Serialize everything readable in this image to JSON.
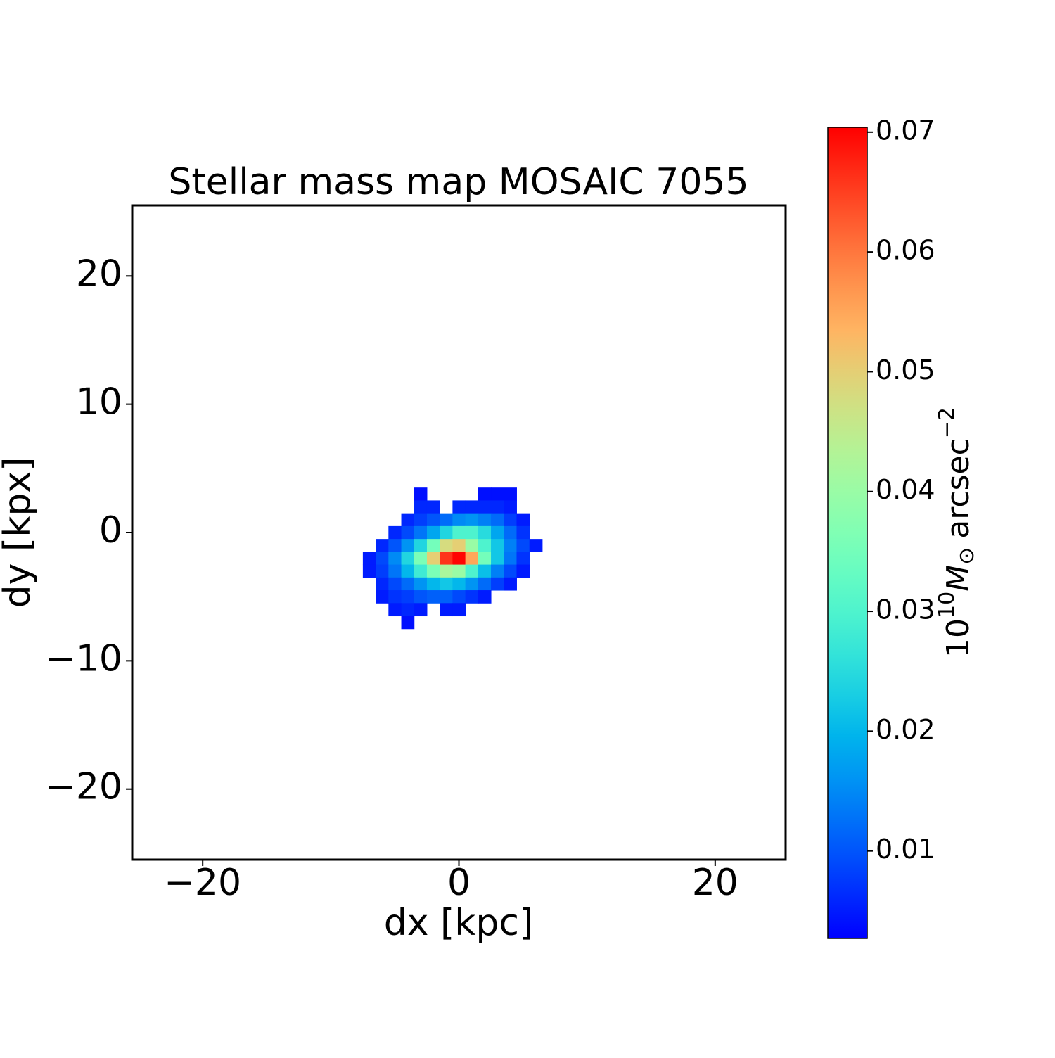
{
  "chart_data": {
    "type": "heatmap",
    "title": "Stellar mass map MOSAIC 7055",
    "x_label": "dx [kpc]",
    "y_label": "dy [kpx]",
    "colormap": "rainbow",
    "x": [
      -7,
      -6,
      -5,
      -4,
      -3,
      -2,
      -1,
      0,
      1,
      2,
      3,
      4,
      5,
      6
    ],
    "y": [
      3,
      2,
      1,
      0,
      -1,
      -2,
      -3,
      -4,
      -5,
      -6,
      -7
    ],
    "z": [
      [
        null,
        null,
        null,
        null,
        0.004,
        null,
        null,
        null,
        null,
        0.004,
        0.004,
        0.004,
        null,
        null
      ],
      [
        null,
        null,
        null,
        null,
        0.006,
        0.006,
        null,
        0.006,
        0.006,
        0.006,
        0.006,
        0.005,
        null,
        null
      ],
      [
        null,
        null,
        null,
        0.006,
        0.008,
        0.01,
        0.012,
        0.015,
        0.016,
        0.014,
        0.012,
        0.008,
        0.005,
        null
      ],
      [
        null,
        null,
        0.006,
        0.009,
        0.013,
        0.018,
        0.024,
        0.03,
        0.03,
        0.025,
        0.018,
        0.012,
        0.007,
        null
      ],
      [
        null,
        0.006,
        0.01,
        0.016,
        0.024,
        0.035,
        0.048,
        0.05,
        0.04,
        0.03,
        0.022,
        0.014,
        0.009,
        0.005
      ],
      [
        0.005,
        0.009,
        0.015,
        0.024,
        0.036,
        0.05,
        0.066,
        0.07,
        0.055,
        0.035,
        0.022,
        0.013,
        0.007,
        null
      ],
      [
        0.005,
        0.008,
        0.013,
        0.02,
        0.028,
        0.036,
        0.042,
        0.04,
        0.03,
        0.021,
        0.014,
        0.009,
        0.005,
        null
      ],
      [
        null,
        0.006,
        0.009,
        0.012,
        0.016,
        0.02,
        0.022,
        0.02,
        0.016,
        0.012,
        0.008,
        0.005,
        null,
        null
      ],
      [
        null,
        0.005,
        0.007,
        0.008,
        0.01,
        0.011,
        0.011,
        0.009,
        0.007,
        0.005,
        null,
        null,
        null,
        null
      ],
      [
        null,
        null,
        0.005,
        0.006,
        0.005,
        null,
        0.005,
        0.005,
        null,
        null,
        null,
        null,
        null,
        null
      ],
      [
        null,
        null,
        null,
        0.004,
        null,
        null,
        null,
        null,
        null,
        null,
        null,
        null,
        null,
        null
      ]
    ],
    "xlim": [
      -25.5,
      25.5
    ],
    "ylim": [
      -25.5,
      25.5
    ],
    "xticks": [
      {
        "value": -20,
        "label": "−20"
      },
      0,
      20
    ],
    "yticks": [
      {
        "value": -20,
        "label": "−20"
      },
      {
        "value": -10,
        "label": "−10"
      },
      0,
      10,
      20
    ],
    "clim": [
      0.0027,
      0.0704
    ],
    "cticks": [
      0.01,
      0.02,
      0.03,
      0.04,
      0.05,
      0.06,
      0.07
    ],
    "colorbar_label": {
      "base": "10",
      "exp": "10",
      "symbol": "M",
      "sub": "⊙",
      "unit": "arcsec",
      "unit_exp": "−2"
    }
  }
}
